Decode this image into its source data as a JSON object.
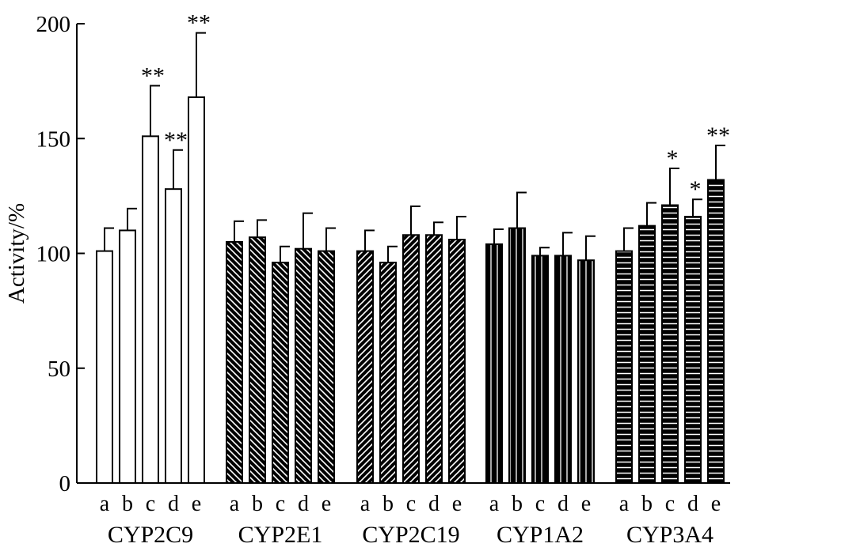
{
  "chart_data": {
    "type": "bar",
    "ylabel": "Activity/%",
    "xlabel": "",
    "ylim": [
      0,
      200
    ],
    "yticks": [
      0,
      50,
      100,
      150,
      200
    ],
    "subcategories": [
      "a",
      "b",
      "c",
      "d",
      "e"
    ],
    "groups": [
      {
        "name": "CYP2C9",
        "pattern": "white",
        "values": [
          101,
          110,
          151,
          128,
          168
        ],
        "errors": [
          10,
          9.5,
          22,
          17,
          28
        ],
        "significance": [
          "",
          "",
          "**",
          "**",
          "**"
        ]
      },
      {
        "name": "CYP2E1",
        "pattern": "diagonal-back",
        "values": [
          105,
          107,
          96,
          102,
          101
        ],
        "errors": [
          9,
          7.5,
          7,
          15.5,
          10
        ],
        "significance": [
          "",
          "",
          "",
          "",
          ""
        ]
      },
      {
        "name": "CYP2C19",
        "pattern": "diagonal-forward",
        "values": [
          101,
          96,
          108,
          108,
          106
        ],
        "errors": [
          9,
          7,
          12.5,
          5.5,
          10
        ],
        "significance": [
          "",
          "",
          "",
          "",
          ""
        ]
      },
      {
        "name": "CYP1A2",
        "pattern": "vertical",
        "values": [
          104,
          111,
          99,
          99,
          97
        ],
        "errors": [
          6.5,
          15.5,
          3.5,
          10,
          10.5
        ],
        "significance": [
          "",
          "",
          "",
          "",
          ""
        ]
      },
      {
        "name": "CYP3A4",
        "pattern": "horizontal",
        "values": [
          101,
          112,
          121,
          116,
          132
        ],
        "errors": [
          10,
          10,
          16,
          7.5,
          15
        ],
        "significance": [
          "",
          "",
          "*",
          "*",
          "**"
        ]
      }
    ]
  }
}
